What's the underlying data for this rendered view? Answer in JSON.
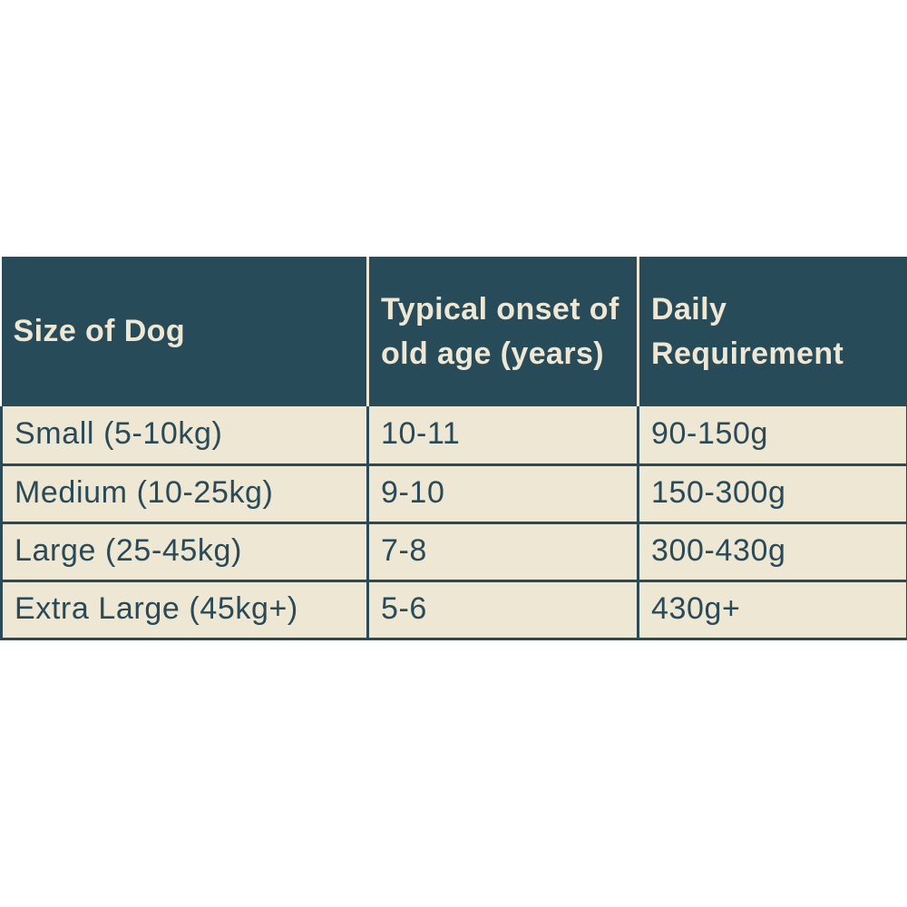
{
  "colors": {
    "header_bg": "#274b59",
    "header_text": "#ede7d4",
    "body_bg": "#ede7d4",
    "body_text": "#2b4a57",
    "border": "#2b4a57",
    "header_divider": "#ede7d4",
    "page_bg": "#ffffff"
  },
  "chart_data": {
    "type": "table",
    "columns": [
      "Size of Dog",
      "Typical onset of old age (years)",
      "Daily Requirement"
    ],
    "rows": [
      [
        "Small (5-10kg)",
        "10-11",
        "90-150g"
      ],
      [
        "Medium (10-25kg)",
        "9-10",
        "150-300g"
      ],
      [
        "Large (25-45kg)",
        "7-8",
        "300-430g"
      ],
      [
        "Extra Large (45kg+)",
        "5-6",
        "430g+"
      ]
    ]
  }
}
